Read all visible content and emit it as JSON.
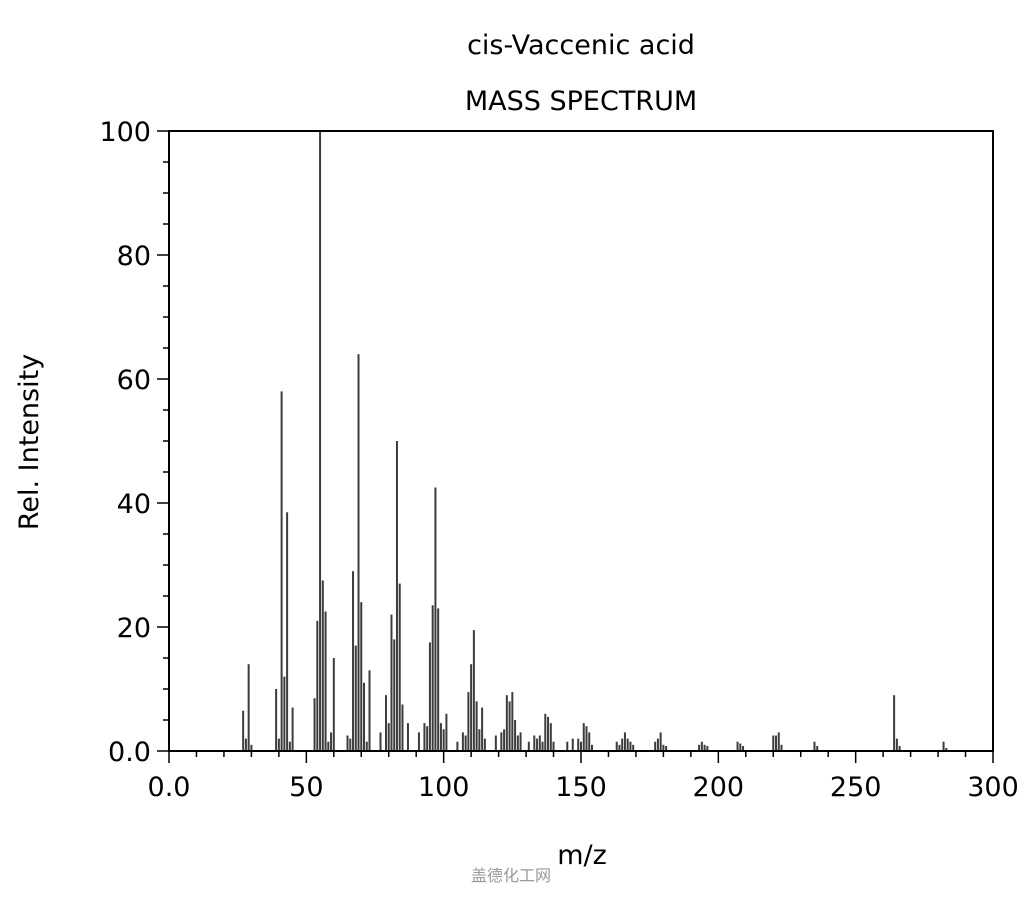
{
  "chart_data": {
    "type": "bar",
    "title": "cis-Vaccenic acid",
    "subtitle": "MASS SPECTRUM",
    "xlabel": "m/z",
    "ylabel": "Rel. Intensity",
    "xlim": [
      0,
      300
    ],
    "ylim": [
      0,
      100
    ],
    "x_ticks": [
      "0.0",
      "50",
      "100",
      "150",
      "200",
      "250",
      "300"
    ],
    "y_ticks": [
      "0.0",
      "20",
      "40",
      "60",
      "80",
      "100"
    ],
    "grid": false,
    "legend": "none",
    "bar_color": "#3c3c3c",
    "peaks": [
      [
        27,
        6.5
      ],
      [
        28,
        2.0
      ],
      [
        29,
        14.0
      ],
      [
        30,
        1.0
      ],
      [
        39,
        10.0
      ],
      [
        40,
        2.0
      ],
      [
        41,
        58.0
      ],
      [
        42,
        12.0
      ],
      [
        43,
        38.5
      ],
      [
        44,
        1.5
      ],
      [
        45,
        7.0
      ],
      [
        53,
        8.5
      ],
      [
        54,
        21.0
      ],
      [
        55,
        100.0
      ],
      [
        56,
        27.5
      ],
      [
        57,
        22.5
      ],
      [
        58,
        1.5
      ],
      [
        59,
        3.0
      ],
      [
        60,
        15.0
      ],
      [
        65,
        2.5
      ],
      [
        66,
        2.0
      ],
      [
        67,
        29.0
      ],
      [
        68,
        17.0
      ],
      [
        69,
        64.0
      ],
      [
        70,
        24.0
      ],
      [
        71,
        11.0
      ],
      [
        72,
        1.5
      ],
      [
        73,
        13.0
      ],
      [
        77,
        3.0
      ],
      [
        79,
        9.0
      ],
      [
        80,
        4.5
      ],
      [
        81,
        22.0
      ],
      [
        82,
        18.0
      ],
      [
        83,
        50.0
      ],
      [
        84,
        27.0
      ],
      [
        85,
        7.5
      ],
      [
        87,
        4.5
      ],
      [
        91,
        3.0
      ],
      [
        93,
        4.5
      ],
      [
        94,
        4.0
      ],
      [
        95,
        17.5
      ],
      [
        96,
        23.5
      ],
      [
        97,
        42.5
      ],
      [
        98,
        23.0
      ],
      [
        99,
        4.5
      ],
      [
        100,
        3.5
      ],
      [
        101,
        6.0
      ],
      [
        105,
        1.5
      ],
      [
        107,
        3.0
      ],
      [
        108,
        2.5
      ],
      [
        109,
        9.5
      ],
      [
        110,
        14.0
      ],
      [
        111,
        19.5
      ],
      [
        112,
        8.0
      ],
      [
        113,
        3.5
      ],
      [
        114,
        7.0
      ],
      [
        115,
        2.0
      ],
      [
        119,
        2.5
      ],
      [
        121,
        3.0
      ],
      [
        122,
        3.5
      ],
      [
        123,
        9.0
      ],
      [
        124,
        8.0
      ],
      [
        125,
        9.5
      ],
      [
        126,
        5.0
      ],
      [
        127,
        2.5
      ],
      [
        128,
        3.0
      ],
      [
        131,
        1.5
      ],
      [
        133,
        2.5
      ],
      [
        134,
        2.0
      ],
      [
        135,
        2.5
      ],
      [
        136,
        1.5
      ],
      [
        137,
        6.0
      ],
      [
        138,
        5.5
      ],
      [
        139,
        4.5
      ],
      [
        140,
        1.5
      ],
      [
        145,
        1.5
      ],
      [
        147,
        2.0
      ],
      [
        149,
        2.0
      ],
      [
        150,
        1.5
      ],
      [
        151,
        4.5
      ],
      [
        152,
        4.0
      ],
      [
        153,
        3.0
      ],
      [
        154,
        1.0
      ],
      [
        163,
        1.5
      ],
      [
        164,
        1.0
      ],
      [
        165,
        2.0
      ],
      [
        166,
        3.0
      ],
      [
        167,
        2.0
      ],
      [
        168,
        1.5
      ],
      [
        169,
        1.0
      ],
      [
        177,
        1.5
      ],
      [
        178,
        2.0
      ],
      [
        179,
        3.0
      ],
      [
        180,
        1.0
      ],
      [
        181,
        0.8
      ],
      [
        193,
        1.0
      ],
      [
        194,
        1.5
      ],
      [
        195,
        1.0
      ],
      [
        196,
        0.8
      ],
      [
        207,
        1.5
      ],
      [
        208,
        1.2
      ],
      [
        209,
        0.8
      ],
      [
        220,
        2.5
      ],
      [
        221,
        2.5
      ],
      [
        222,
        3.0
      ],
      [
        223,
        1.0
      ],
      [
        235,
        1.5
      ],
      [
        236,
        0.8
      ],
      [
        264,
        9.0
      ],
      [
        265,
        2.0
      ],
      [
        266,
        0.8
      ],
      [
        282,
        1.5
      ],
      [
        283,
        0.5
      ]
    ]
  },
  "watermark": "盖德化工网"
}
